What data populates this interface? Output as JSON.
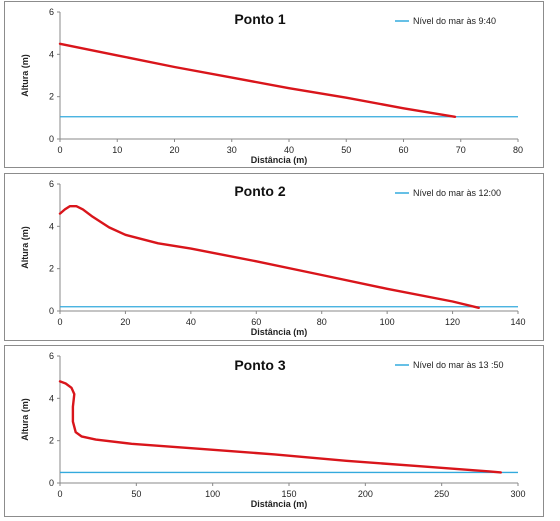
{
  "colors": {
    "series": "#d9151b",
    "sea_level": "#33aadd",
    "axis": "#888888"
  },
  "chart_data": [
    {
      "type": "line",
      "title": "Ponto 1",
      "xlabel": "Distância (m)",
      "ylabel": "Altura (m)",
      "xlim": [
        0,
        80
      ],
      "ylim": [
        0,
        6
      ],
      "xticks": [
        "0",
        "10",
        "20",
        "30",
        "40",
        "50",
        "60",
        "70",
        "80"
      ],
      "yticks": [
        "0",
        "2",
        "4",
        "6"
      ],
      "grid": false,
      "legend_position": "top-right",
      "series": [
        {
          "x": [
            0,
            10,
            20,
            30,
            40,
            50,
            60,
            69
          ],
          "y": [
            4.5,
            3.95,
            3.4,
            2.9,
            2.4,
            1.95,
            1.45,
            1.05
          ]
        },
        {
          "name": "Nível do mar às 9:40",
          "x": [
            0,
            80
          ],
          "y": [
            1.05,
            1.05
          ]
        }
      ]
    },
    {
      "type": "line",
      "title": "Ponto 2",
      "xlabel": "Distância (m)",
      "ylabel": "Altura (m)",
      "xlim": [
        0,
        140
      ],
      "ylim": [
        0,
        6
      ],
      "xticks": [
        "0",
        "20",
        "40",
        "60",
        "80",
        "100",
        "120",
        "140"
      ],
      "yticks": [
        "0",
        "2",
        "4",
        "6"
      ],
      "grid": false,
      "legend_position": "top-right",
      "series": [
        {
          "x": [
            0,
            1.5,
            3,
            5,
            7,
            10,
            15,
            20,
            30,
            40,
            60,
            80,
            100,
            120,
            128
          ],
          "y": [
            4.6,
            4.8,
            4.95,
            4.95,
            4.8,
            4.45,
            3.95,
            3.6,
            3.2,
            2.95,
            2.35,
            1.7,
            1.05,
            0.45,
            0.15
          ]
        },
        {
          "name": "Nível do mar às 12:00",
          "x": [
            0,
            140
          ],
          "y": [
            0.2,
            0.2
          ]
        }
      ]
    },
    {
      "type": "line",
      "title": "Ponto 3",
      "xlabel": "Distância (m)",
      "ylabel": "Altura (m)",
      "xlim": [
        0,
        320
      ],
      "ylim": [
        0,
        6
      ],
      "xticks": [
        "0",
        "50",
        "100",
        "150",
        "200",
        "250",
        "300"
      ],
      "yticks": [
        "0",
        "2",
        "4",
        "6"
      ],
      "grid": false,
      "legend_position": "top-right",
      "series": [
        {
          "x": [
            0,
            4,
            8,
            10,
            9,
            9,
            11,
            15,
            25,
            50,
            100,
            150,
            200,
            250,
            300,
            308
          ],
          "y": [
            4.8,
            4.7,
            4.5,
            4.2,
            3.6,
            2.9,
            2.4,
            2.2,
            2.05,
            1.85,
            1.6,
            1.35,
            1.05,
            0.8,
            0.55,
            0.5
          ]
        },
        {
          "name": "Nível do mar às 13 :50",
          "x": [
            0,
            320
          ],
          "y": [
            0.5,
            0.5
          ]
        }
      ]
    }
  ]
}
